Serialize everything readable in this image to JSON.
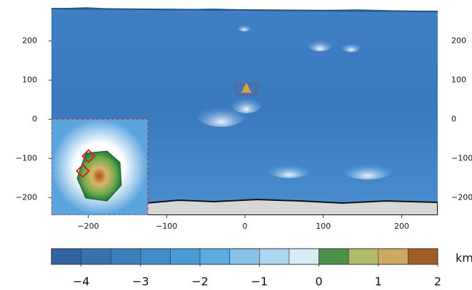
{
  "chart_data": {
    "type": "terrain",
    "xlim": [
      -247,
      246
    ],
    "ylim": [
      -245,
      290
    ],
    "xticks": [
      {
        "value": -200,
        "label": "−200"
      },
      {
        "value": -100,
        "label": "−100"
      },
      0,
      100,
      200
    ],
    "yticks": [
      200,
      100,
      0,
      {
        "value": -100,
        "label": "−100"
      },
      {
        "value": -200,
        "label": "−200"
      }
    ],
    "colorbar": {
      "lim": [
        -4.5,
        2
      ],
      "step": 0.5,
      "label": "km",
      "ticks": [
        {
          "value": -4,
          "label": "−4"
        },
        {
          "value": -3,
          "label": "−3"
        },
        {
          "value": -2,
          "label": "−2"
        },
        {
          "value": -1,
          "label": "−1"
        },
        0,
        1,
        2
      ],
      "stops": [
        {
          "value": -4.5,
          "color": "#2f5c9c"
        },
        {
          "value": -2,
          "color": "#4aa2dc"
        },
        {
          "value": 0,
          "color": "#eaf6fb"
        },
        {
          "value": 0.01,
          "color": "#1f7d3a"
        },
        {
          "value": 1,
          "color": "#e3d07c"
        },
        {
          "value": 2,
          "color": "#8a3808"
        }
      ]
    }
  }
}
